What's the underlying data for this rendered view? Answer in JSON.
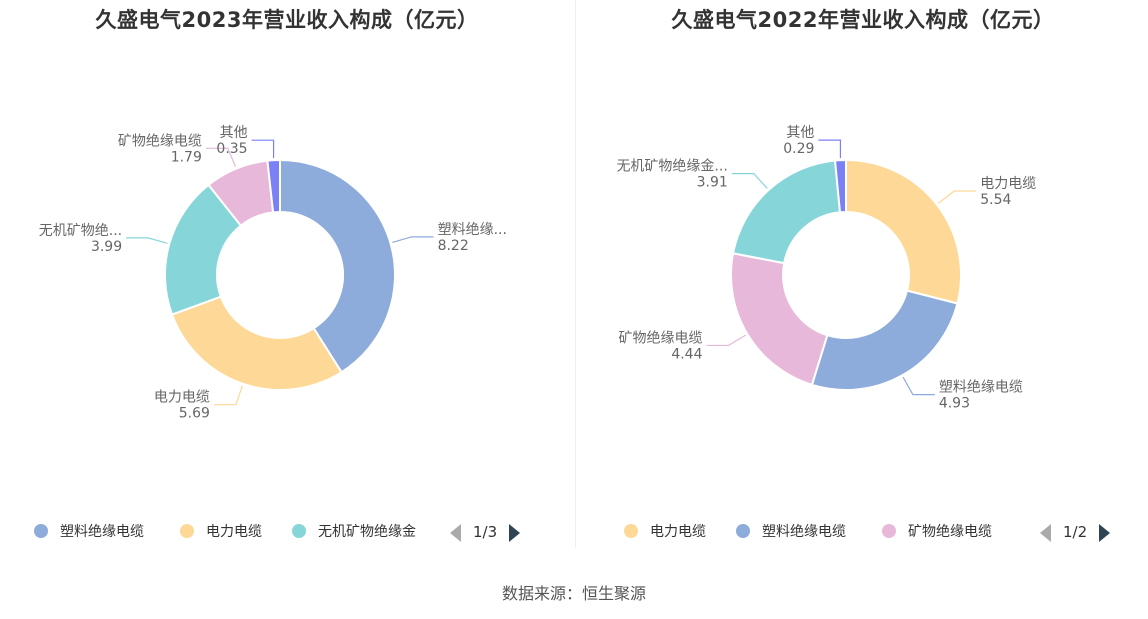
{
  "source": "数据来源：恒生聚源",
  "chart_data": [
    {
      "type": "pie",
      "title": "久盛电气2023年营业收入构成（亿元）",
      "categories": [
        "塑料绝缘电缆",
        "电力电缆",
        "无机矿物绝缘金属护套电缆",
        "矿物绝缘电缆",
        "其他"
      ],
      "values": [
        8.22,
        5.69,
        3.99,
        1.79,
        0.35
      ],
      "colors": [
        "#8dabdb",
        "#fdd896",
        "#86d6d9",
        "#e8b8da",
        "#7b81f5"
      ],
      "value_labels": [
        "8.22",
        "5.69",
        "3.99",
        "1.79",
        "0.35"
      ],
      "slice_labels": [
        "塑料绝缘...",
        "电力电缆",
        "无机矿物绝...",
        "矿物绝缘电缆",
        "其他"
      ],
      "legend": {
        "placement": "bottom",
        "items": [
          {
            "label": "塑料绝缘电缆",
            "color": "#8dabdb"
          },
          {
            "label": "电力电缆",
            "color": "#fdd896"
          },
          {
            "label": "无机矿物绝缘金",
            "color": "#86d6d9"
          }
        ],
        "page": "1/3"
      }
    },
    {
      "type": "pie",
      "title": "久盛电气2022年营业收入构成（亿元）",
      "categories": [
        "电力电缆",
        "塑料绝缘电缆",
        "矿物绝缘电缆",
        "无机矿物绝缘金属护套电缆",
        "其他"
      ],
      "values": [
        5.54,
        4.93,
        4.44,
        3.91,
        0.29
      ],
      "colors": [
        "#fdd896",
        "#8dabdb",
        "#e8b8da",
        "#86d6d9",
        "#7b81f5"
      ],
      "value_labels": [
        "5.54",
        "4.93",
        "4.44",
        "3.91",
        "0.29"
      ],
      "slice_labels": [
        "电力电缆",
        "塑料绝缘电缆",
        "矿物绝缘电缆",
        "无机矿物绝缘金...",
        "其他"
      ],
      "legend": {
        "placement": "bottom",
        "items": [
          {
            "label": "电力电缆",
            "color": "#fdd896"
          },
          {
            "label": "塑料绝缘电缆",
            "color": "#8dabdb"
          },
          {
            "label": "矿物绝缘电缆",
            "color": "#e8b8da"
          }
        ],
        "page": "1/2"
      }
    }
  ]
}
